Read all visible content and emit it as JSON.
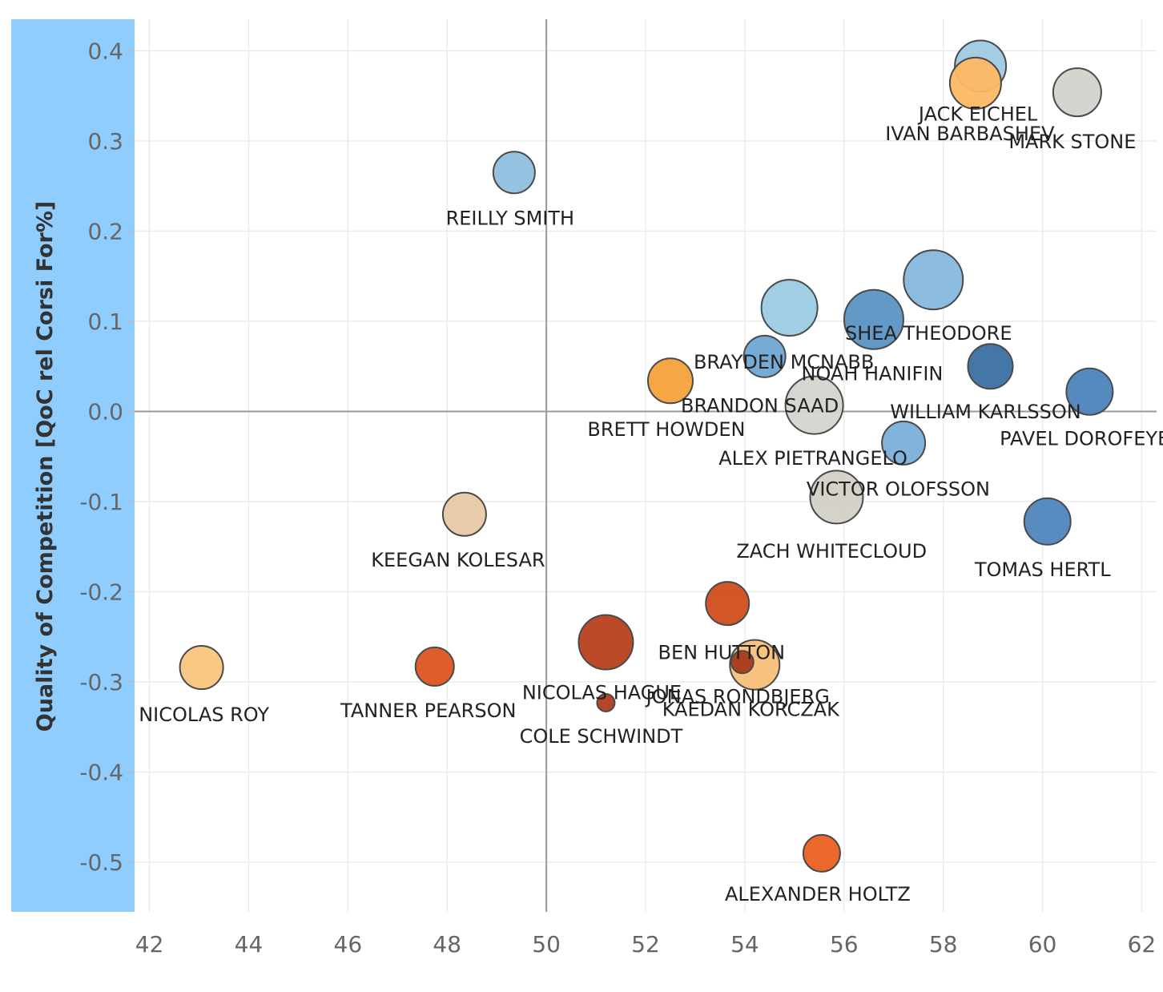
{
  "chart_data": {
    "type": "scatter",
    "ylabel": "Quality of Competition [QoC rel Corsi For%]",
    "xlabel": "",
    "xlim": [
      41.7,
      62.3
    ],
    "ylim": [
      -0.555,
      0.435
    ],
    "x_ticks": [
      "42",
      "44",
      "46",
      "48",
      "50",
      "52",
      "54",
      "56",
      "58",
      "60",
      "62"
    ],
    "y_ticks": [
      "0.4",
      "0.3",
      "0.2",
      "0.1",
      "0.0",
      "-0.1",
      "-0.2",
      "-0.3",
      "-0.4",
      "-0.5"
    ],
    "reference_lines": {
      "x": 50,
      "y": 0
    },
    "grid": true,
    "ylabel_highlight_color": "#8fcdff",
    "points": [
      {
        "label": "JACK EICHEL",
        "x": 58.75,
        "y": 0.383,
        "size": 32,
        "color": "#9ecae1"
      },
      {
        "label": "IVAN BARBASHEV",
        "x": 58.65,
        "y": 0.364,
        "size": 32,
        "color": "#fdb863"
      },
      {
        "label": "MARK STONE",
        "x": 60.7,
        "y": 0.354,
        "size": 30,
        "color": "#d3d3cc"
      },
      {
        "label": "REILLY SMITH",
        "x": 49.35,
        "y": 0.265,
        "size": 26,
        "color": "#90bfe0"
      },
      {
        "label": "SHEA THEODORE",
        "x": 57.8,
        "y": 0.146,
        "size": 37,
        "color": "#86b8dd"
      },
      {
        "label": "",
        "x": 54.9,
        "y": 0.115,
        "size": 35,
        "color": "#9dcbe4"
      },
      {
        "label": "NOAH HANIFIN",
        "x": 56.6,
        "y": 0.102,
        "size": 37,
        "color": "#5a93c4"
      },
      {
        "label": "BRAYDEN MCNABB",
        "x": 54.4,
        "y": 0.061,
        "size": 26,
        "color": "#6fa7d4"
      },
      {
        "label": "WILLIAM KARLSSON",
        "x": 58.95,
        "y": 0.05,
        "size": 28,
        "color": "#3b6fa3"
      },
      {
        "label": "BRETT HOWDEN",
        "x": 52.5,
        "y": 0.034,
        "size": 28,
        "color": "#f6a13a"
      },
      {
        "label": "PAVEL DOROFEYEV",
        "x": 60.95,
        "y": 0.022,
        "size": 29,
        "color": "#4c84bc"
      },
      {
        "label": "BRANDON SAAD",
        "x": 55.4,
        "y": 0.007,
        "size": 36,
        "color": "#d5d5cf"
      },
      {
        "label": "ALEX PIETRANGELO",
        "x": 57.2,
        "y": -0.035,
        "size": 27,
        "color": "#7ab0da"
      },
      {
        "label": "VICTOR OLOFSSON",
        "x": 55.85,
        "y": -0.095,
        "size": 33,
        "color": "#d2d0c6"
      },
      {
        "label": "KEEGAN KOLESAR",
        "x": 48.35,
        "y": -0.114,
        "size": 27,
        "color": "#e8caa5"
      },
      {
        "label": "TOMAS HERTL",
        "x": 60.1,
        "y": -0.122,
        "size": 29,
        "color": "#4f86bd"
      },
      {
        "label": "ZACH WHITECLOUD",
        "x": 53.65,
        "y": -0.213,
        "size": 27,
        "color": "#d04d1c"
      },
      {
        "label": "NICOLAS HAGUE",
        "x": 51.2,
        "y": -0.256,
        "size": 34,
        "color": "#b8401c"
      },
      {
        "label": "JONAS RONDBJERG",
        "x": 54.2,
        "y": -0.281,
        "size": 31,
        "color": "#f8c07a"
      },
      {
        "label": "BEN HUTTON",
        "x": 53.95,
        "y": -0.278,
        "size": 14,
        "color": "#a8391c"
      },
      {
        "label": "NICOLAS ROY",
        "x": 43.05,
        "y": -0.284,
        "size": 27,
        "color": "#f9c57d"
      },
      {
        "label": "TANNER PEARSON",
        "x": 47.75,
        "y": -0.283,
        "size": 24,
        "color": "#dc5520"
      },
      {
        "label": "COLE SCHWINDT",
        "x": 51.2,
        "y": -0.323,
        "size": 11,
        "color": "#b13d1c"
      },
      {
        "label": "KAEDAN KORCZAK",
        "x": 54.2,
        "y": -0.281,
        "size": 0,
        "color": "#f8c07a"
      },
      {
        "label": "ALEXANDER HOLTZ",
        "x": 55.55,
        "y": -0.49,
        "size": 23,
        "color": "#ea6020"
      }
    ]
  }
}
